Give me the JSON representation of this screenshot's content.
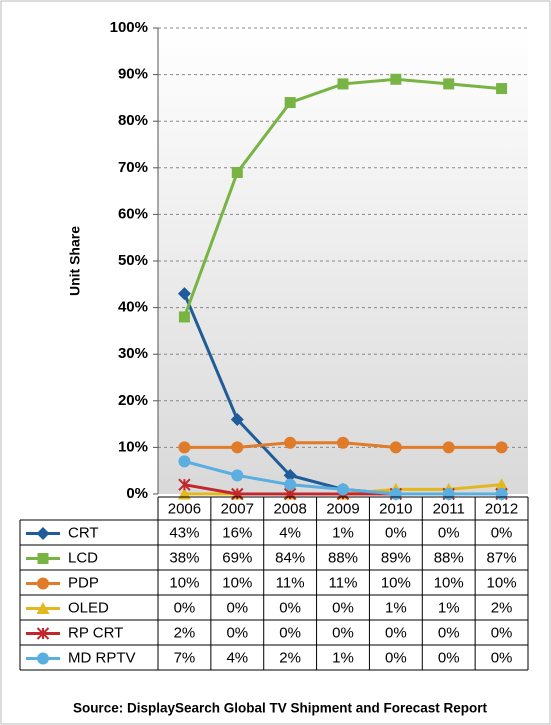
{
  "chart_data": {
    "type": "line",
    "y_label": "Unit Share",
    "source": "Source: DisplaySearch Global TV Shipment and Forecast Report",
    "categories": [
      "2006",
      "2007",
      "2008",
      "2009",
      "2010",
      "2011",
      "2012"
    ],
    "ylim": [
      0,
      100
    ],
    "yticks": [
      {
        "value": 0,
        "label": "0%"
      },
      {
        "value": 10,
        "label": "10%"
      },
      {
        "value": 20,
        "label": "20%"
      },
      {
        "value": 30,
        "label": "30%"
      },
      {
        "value": 40,
        "label": "40%"
      },
      {
        "value": 50,
        "label": "50%"
      },
      {
        "value": 60,
        "label": "60%"
      },
      {
        "value": 70,
        "label": "70%"
      },
      {
        "value": 80,
        "label": "80%"
      },
      {
        "value": 90,
        "label": "90%"
      },
      {
        "value": 100,
        "label": "100%"
      }
    ],
    "grid": true,
    "series": [
      {
        "name": "CRT",
        "color": "#1f5c99",
        "marker": "diamond",
        "values": [
          43,
          16,
          4,
          1,
          0,
          0,
          0
        ],
        "value_labels": [
          "43%",
          "16%",
          "4%",
          "1%",
          "0%",
          "0%",
          "0%"
        ]
      },
      {
        "name": "LCD",
        "color": "#78b443",
        "marker": "square",
        "values": [
          38,
          69,
          84,
          88,
          89,
          88,
          87
        ],
        "value_labels": [
          "38%",
          "69%",
          "84%",
          "88%",
          "89%",
          "88%",
          "87%"
        ]
      },
      {
        "name": "PDP",
        "color": "#e07b29",
        "marker": "circle",
        "values": [
          10,
          10,
          11,
          11,
          10,
          10,
          10
        ],
        "value_labels": [
          "10%",
          "10%",
          "11%",
          "11%",
          "10%",
          "10%",
          "10%"
        ]
      },
      {
        "name": "OLED",
        "color": "#e3b81f",
        "marker": "triangle",
        "values": [
          0,
          0,
          0,
          0,
          1,
          1,
          2
        ],
        "value_labels": [
          "0%",
          "0%",
          "0%",
          "0%",
          "1%",
          "1%",
          "2%"
        ]
      },
      {
        "name": "RP CRT",
        "color": "#c0282d",
        "marker": "x",
        "values": [
          2,
          0,
          0,
          0,
          0,
          0,
          0
        ],
        "value_labels": [
          "2%",
          "0%",
          "0%",
          "0%",
          "0%",
          "0%",
          "0%"
        ]
      },
      {
        "name": "MD RPTV",
        "color": "#5aaee0",
        "marker": "circle",
        "values": [
          7,
          4,
          2,
          1,
          0,
          0,
          0
        ],
        "value_labels": [
          "7%",
          "4%",
          "2%",
          "1%",
          "0%",
          "0%",
          "0%"
        ]
      }
    ]
  }
}
